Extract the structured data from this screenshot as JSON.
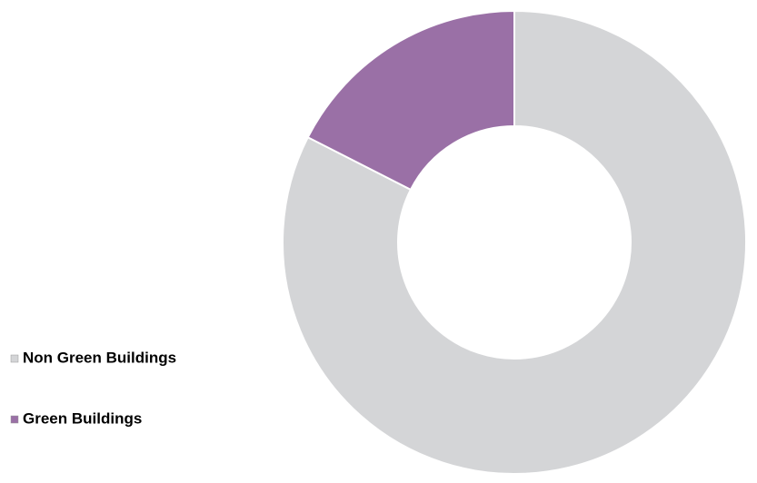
{
  "chart_data": {
    "type": "donut",
    "categories": [
      "Non Green Buildings",
      "Green Buildings"
    ],
    "values": [
      82.5,
      17.5
    ],
    "colors": [
      "#d4d5d7",
      "#9a70a6"
    ]
  }
}
